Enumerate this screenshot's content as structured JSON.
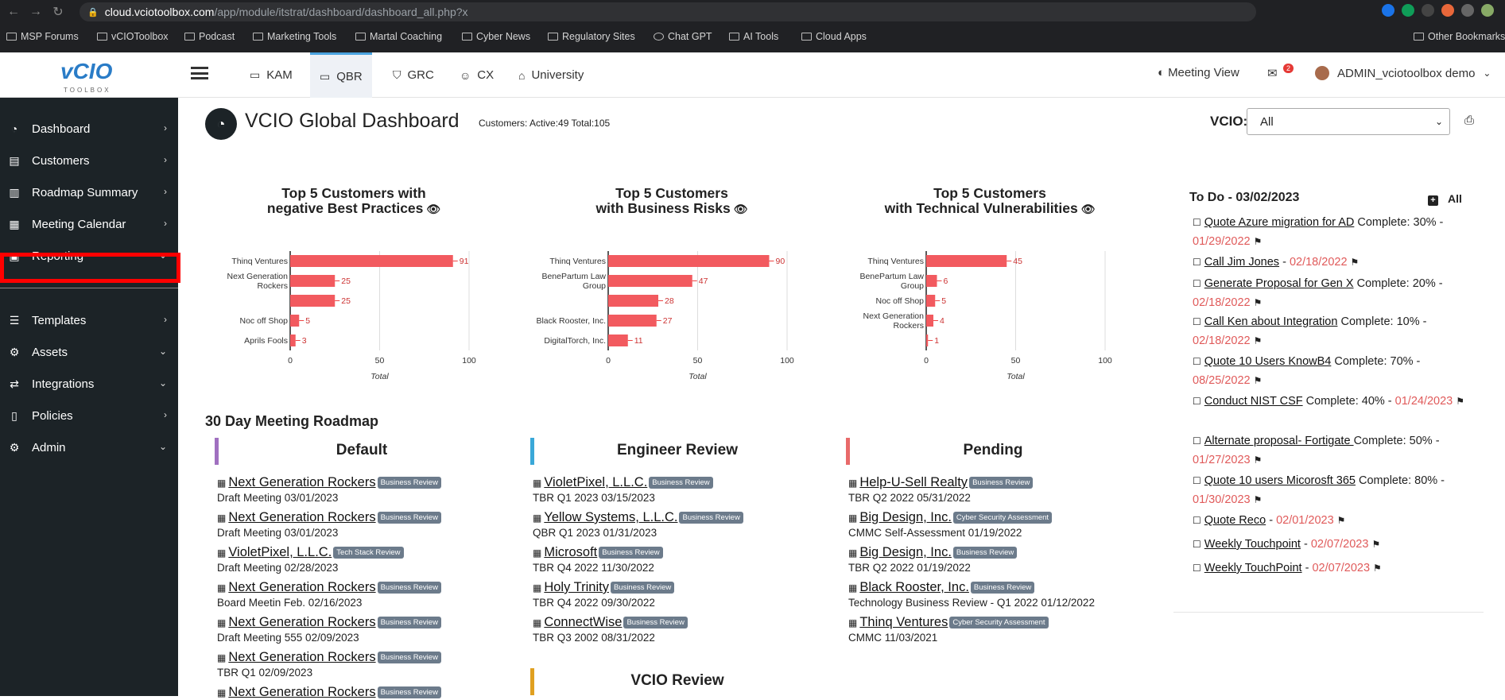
{
  "browser": {
    "url_host": "cloud.vciotoolbox.com",
    "url_path": "/app/module/itstrat/dashboard/dashboard_all.php?x",
    "bookmarks": [
      "MSP Forums",
      "vCIOToolbox",
      "Podcast",
      "Marketing Tools",
      "Martal Coaching",
      "Cyber News",
      "Regulatory Sites",
      "Chat GPT",
      "AI Tools",
      "Cloud Apps"
    ],
    "other_bookmarks": "Other Bookmarks"
  },
  "logo": {
    "main": "vCIO",
    "sub": "TOOLBOX"
  },
  "sidebar": {
    "items": [
      {
        "label": "Dashboard",
        "chev": "›"
      },
      {
        "label": "Customers",
        "chev": "›"
      },
      {
        "label": "Roadmap Summary",
        "chev": "›"
      },
      {
        "label": "Meeting Calendar",
        "chev": "›"
      },
      {
        "label": "Reporting",
        "chev": "⌄"
      },
      {
        "label": "Templates",
        "chev": "›"
      },
      {
        "label": "Assets",
        "chev": "⌄"
      },
      {
        "label": "Integrations",
        "chev": "⌄"
      },
      {
        "label": "Policies",
        "chev": "›"
      },
      {
        "label": "Admin",
        "chev": "⌄"
      }
    ]
  },
  "topnav": {
    "tabs": [
      "KAM",
      "QBR",
      "GRC",
      "CX",
      "University"
    ],
    "meeting_view": "Meeting View",
    "mail_badge": "2",
    "user": "ADMIN_vciotoolbox demo"
  },
  "page": {
    "title": "VCIO Global Dashboard",
    "customers": "Customers: Active:49  Total:105",
    "vcio_label": "VCIO:",
    "vcio_value": "All"
  },
  "chart_data": [
    {
      "type": "bar",
      "title": "Top 5 Customers with negative Best Practices",
      "title_lines": [
        "Top 5 Customers with",
        "negative Best Practices"
      ],
      "categories": [
        [
          "Thinq Ventures"
        ],
        [
          "Next Generation",
          "Rockers"
        ],
        [
          ""
        ],
        [
          "Noc off Shop"
        ],
        [
          "Aprils Fools"
        ]
      ],
      "values": [
        91,
        25,
        25,
        5,
        3
      ],
      "xlabel": "Total",
      "xlim": [
        0,
        100
      ],
      "xticks": [
        0,
        50,
        100
      ],
      "color": "#f25a5f"
    },
    {
      "type": "bar",
      "title": "Top 5 Customers with Business Risks",
      "title_lines": [
        "Top 5 Customers",
        "with Business Risks"
      ],
      "categories": [
        [
          "Thinq Ventures"
        ],
        [
          "BenePartum Law",
          "Group"
        ],
        [
          ""
        ],
        [
          "Black Rooster, Inc."
        ],
        [
          "DigitalTorch, Inc."
        ]
      ],
      "values": [
        90,
        47,
        28,
        27,
        11
      ],
      "xlabel": "Total",
      "xlim": [
        0,
        100
      ],
      "xticks": [
        0,
        50,
        100
      ],
      "color": "#f25a5f"
    },
    {
      "type": "bar",
      "title": "Top 5 Customers with Technical Vulnerabilities",
      "title_lines": [
        "Top 5 Customers",
        "with Technical Vulnerabilities"
      ],
      "categories": [
        [
          "Thinq Ventures"
        ],
        [
          "BenePartum Law",
          "Group"
        ],
        [
          "Noc off Shop"
        ],
        [
          "Next Generation",
          "Rockers"
        ],
        [
          ""
        ]
      ],
      "values": [
        45,
        6,
        5,
        4,
        1
      ],
      "xlabel": "Total",
      "xlim": [
        0,
        100
      ],
      "xticks": [
        0,
        50,
        100
      ],
      "color": "#f25a5f"
    }
  ],
  "todo": {
    "title": "To Do - 03/02/2023",
    "all_label": "All",
    "items": [
      {
        "name": "Quote Azure migration for AD",
        "complete": "Complete: 30% -",
        "date": "01/29/2022"
      },
      {
        "name": "Call Jim Jones",
        "complete": "-",
        "date": "02/18/2022"
      },
      {
        "name": "Generate Proposal for Gen X",
        "complete": "Complete: 20% -",
        "date": "02/18/2022"
      },
      {
        "name": "Call Ken about Integration",
        "complete": "Complete: 10% -",
        "date": "02/18/2022"
      },
      {
        "name": "Quote 10 Users KnowB4",
        "complete": "Complete: 70% -",
        "date": "08/25/2022"
      },
      {
        "name": "Conduct NIST CSF",
        "complete": "Complete: 40% -",
        "date": "01/24/2023"
      },
      {
        "name": "Alternate proposal- Fortigate ",
        "complete": "Complete: 50% -",
        "date": "01/27/2023"
      },
      {
        "name": "Quote 10 users Micorosft 365",
        "complete": "Complete: 80% -",
        "date": "01/30/2023"
      },
      {
        "name": "Quote Reco",
        "complete": "-",
        "date": "02/01/2023"
      },
      {
        "name": "Weekly Touchpoint",
        "complete": "-",
        "date": "02/07/2023"
      },
      {
        "name": "Weekly TouchPoint",
        "complete": "-",
        "date": "02/07/2023"
      }
    ]
  },
  "roadmap": {
    "title": "30 Day Meeting Roadmap",
    "columns": [
      {
        "name": "Default",
        "color": "#a070c0",
        "meetings": [
          {
            "name": "Next Generation Rockers",
            "tag": "Business Review",
            "sub": "Draft Meeting 03/01/2023"
          },
          {
            "name": "Next Generation Rockers",
            "tag": "Business Review",
            "sub": "Draft Meeting 03/01/2023"
          },
          {
            "name": "VioletPixel, L.L.C.",
            "tag": "Tech Stack Review",
            "sub": "Draft Meeting 02/28/2023"
          },
          {
            "name": "Next Generation Rockers",
            "tag": "Business Review",
            "sub": "Board Meetin Feb. 02/16/2023"
          },
          {
            "name": "Next Generation Rockers",
            "tag": "Business Review",
            "sub": "Draft Meeting 555 02/09/2023"
          },
          {
            "name": "Next Generation Rockers",
            "tag": "Business Review",
            "sub": "TBR Q1 02/09/2023"
          },
          {
            "name": "Next Generation Rockers",
            "tag": "Business Review",
            "sub": ""
          }
        ]
      },
      {
        "name": "Engineer Review",
        "color": "#3aa8d8",
        "meetings": [
          {
            "name": "VioletPixel, L.L.C.",
            "tag": "Business Review",
            "sub": "TBR Q1 2023 03/15/2023"
          },
          {
            "name": "Yellow Systems, L.L.C.",
            "tag": "Business Review",
            "sub": "QBR Q1 2023 01/31/2023"
          },
          {
            "name": "Microsoft",
            "tag": "Business Review",
            "sub": "TBR Q4 2022 11/30/2022"
          },
          {
            "name": "Holy Trinity",
            "tag": "Business Review",
            "sub": "TBR Q4 2022 09/30/2022"
          },
          {
            "name": "ConnectWise",
            "tag": "Business Review",
            "sub": "TBR Q3 2002 08/31/2022"
          }
        ]
      },
      {
        "name": "Pending",
        "color": "#e86a6a",
        "meetings": [
          {
            "name": "Help-U-Sell Realty",
            "tag": "Business Review",
            "sub": "TBR Q2 2022 05/31/2022"
          },
          {
            "name": "Big Design, Inc.",
            "tag": "Cyber Security Assessment",
            "sub": "CMMC Self-Assessment 01/19/2022"
          },
          {
            "name": "Big Design, Inc.",
            "tag": "Business Review",
            "sub": "TBR Q2 2022 01/19/2022"
          },
          {
            "name": "Black Rooster, Inc.",
            "tag": "Business Review",
            "sub": "Technology Business Review - Q1 2022 01/12/2022"
          },
          {
            "name": "Thinq Ventures",
            "tag": "Cyber Security Assessment",
            "sub": "CMMC 11/03/2021"
          }
        ]
      },
      {
        "name": "VCIO Review",
        "color": "#e0a020",
        "meetings": []
      }
    ]
  }
}
